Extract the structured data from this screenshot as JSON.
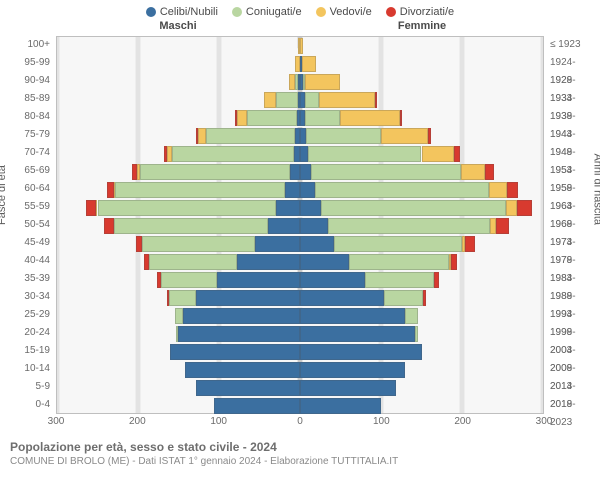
{
  "chart": {
    "type": "population-pyramid-stacked",
    "legend": [
      {
        "label": "Celibi/Nubili",
        "color": "#3b6fa0"
      },
      {
        "label": "Coniugati/e",
        "color": "#b9d6a1"
      },
      {
        "label": "Vedovi/e",
        "color": "#f3c55e"
      },
      {
        "label": "Divorziati/e",
        "color": "#d83a2f"
      }
    ],
    "col_header_left": "Maschi",
    "col_header_right": "Femmine",
    "y_axis_left_title": "Fasce di età",
    "y_axis_right_title": "Anni di nascita",
    "x_ticks": [
      300,
      200,
      100,
      0,
      100,
      200,
      300
    ],
    "x_max": 300,
    "background_color": "#f7f7f7",
    "grid_color": "#e3e3e3",
    "center_line_color": "#c9c9c9",
    "border_color": "#bfbfbf",
    "stroke_color": "rgba(80,80,80,0.25)",
    "rows": [
      {
        "age": "100+",
        "year": "≤ 1923",
        "m": [
          0,
          0,
          2,
          0
        ],
        "f": [
          0,
          0,
          4,
          0
        ]
      },
      {
        "age": "95-99",
        "year": "1924-1928",
        "m": [
          0,
          0,
          6,
          0
        ],
        "f": [
          2,
          0,
          18,
          0
        ]
      },
      {
        "age": "90-94",
        "year": "1929-1933",
        "m": [
          2,
          4,
          8,
          0
        ],
        "f": [
          4,
          2,
          44,
          0
        ]
      },
      {
        "age": "85-89",
        "year": "1934-1938",
        "m": [
          2,
          28,
          14,
          0
        ],
        "f": [
          6,
          18,
          68,
          2
        ]
      },
      {
        "age": "80-84",
        "year": "1939-1943",
        "m": [
          4,
          62,
          12,
          2
        ],
        "f": [
          6,
          44,
          74,
          2
        ]
      },
      {
        "age": "75-79",
        "year": "1944-1948",
        "m": [
          6,
          110,
          10,
          2
        ],
        "f": [
          8,
          92,
          58,
          4
        ]
      },
      {
        "age": "70-74",
        "year": "1949-1953",
        "m": [
          8,
          150,
          6,
          4
        ],
        "f": [
          10,
          140,
          40,
          8
        ]
      },
      {
        "age": "65-69",
        "year": "1954-1958",
        "m": [
          12,
          185,
          4,
          6
        ],
        "f": [
          14,
          185,
          30,
          10
        ]
      },
      {
        "age": "60-64",
        "year": "1959-1963",
        "m": [
          18,
          210,
          2,
          8
        ],
        "f": [
          18,
          215,
          22,
          14
        ]
      },
      {
        "age": "55-59",
        "year": "1964-1968",
        "m": [
          30,
          220,
          2,
          12
        ],
        "f": [
          26,
          228,
          14,
          18
        ]
      },
      {
        "age": "50-54",
        "year": "1969-1973",
        "m": [
          40,
          190,
          0,
          12
        ],
        "f": [
          34,
          200,
          8,
          16
        ]
      },
      {
        "age": "45-49",
        "year": "1974-1978",
        "m": [
          55,
          140,
          0,
          8
        ],
        "f": [
          42,
          158,
          4,
          12
        ]
      },
      {
        "age": "40-44",
        "year": "1979-1983",
        "m": [
          78,
          108,
          0,
          6
        ],
        "f": [
          60,
          124,
          2,
          8
        ]
      },
      {
        "age": "35-39",
        "year": "1984-1988",
        "m": [
          102,
          70,
          0,
          4
        ],
        "f": [
          80,
          86,
          0,
          6
        ]
      },
      {
        "age": "30-34",
        "year": "1989-1993",
        "m": [
          128,
          34,
          0,
          2
        ],
        "f": [
          104,
          48,
          0,
          4
        ]
      },
      {
        "age": "25-29",
        "year": "1994-1998",
        "m": [
          144,
          10,
          0,
          0
        ],
        "f": [
          130,
          16,
          0,
          0
        ]
      },
      {
        "age": "20-24",
        "year": "1999-2003",
        "m": [
          150,
          2,
          0,
          0
        ],
        "f": [
          142,
          4,
          0,
          0
        ]
      },
      {
        "age": "15-19",
        "year": "2004-2008",
        "m": [
          160,
          0,
          0,
          0
        ],
        "f": [
          150,
          0,
          0,
          0
        ]
      },
      {
        "age": "10-14",
        "year": "2009-2013",
        "m": [
          142,
          0,
          0,
          0
        ],
        "f": [
          130,
          0,
          0,
          0
        ]
      },
      {
        "age": "5-9",
        "year": "2014-2018",
        "m": [
          128,
          0,
          0,
          0
        ],
        "f": [
          118,
          0,
          0,
          0
        ]
      },
      {
        "age": "0-4",
        "year": "2019-2023",
        "m": [
          106,
          0,
          0,
          0
        ],
        "f": [
          100,
          0,
          0,
          0
        ]
      }
    ]
  },
  "footer": {
    "line1": "Popolazione per età, sesso e stato civile - 2024",
    "line2": "COMUNE DI BROLO (ME) - Dati ISTAT 1° gennaio 2024 - Elaborazione TUTTITALIA.IT"
  }
}
